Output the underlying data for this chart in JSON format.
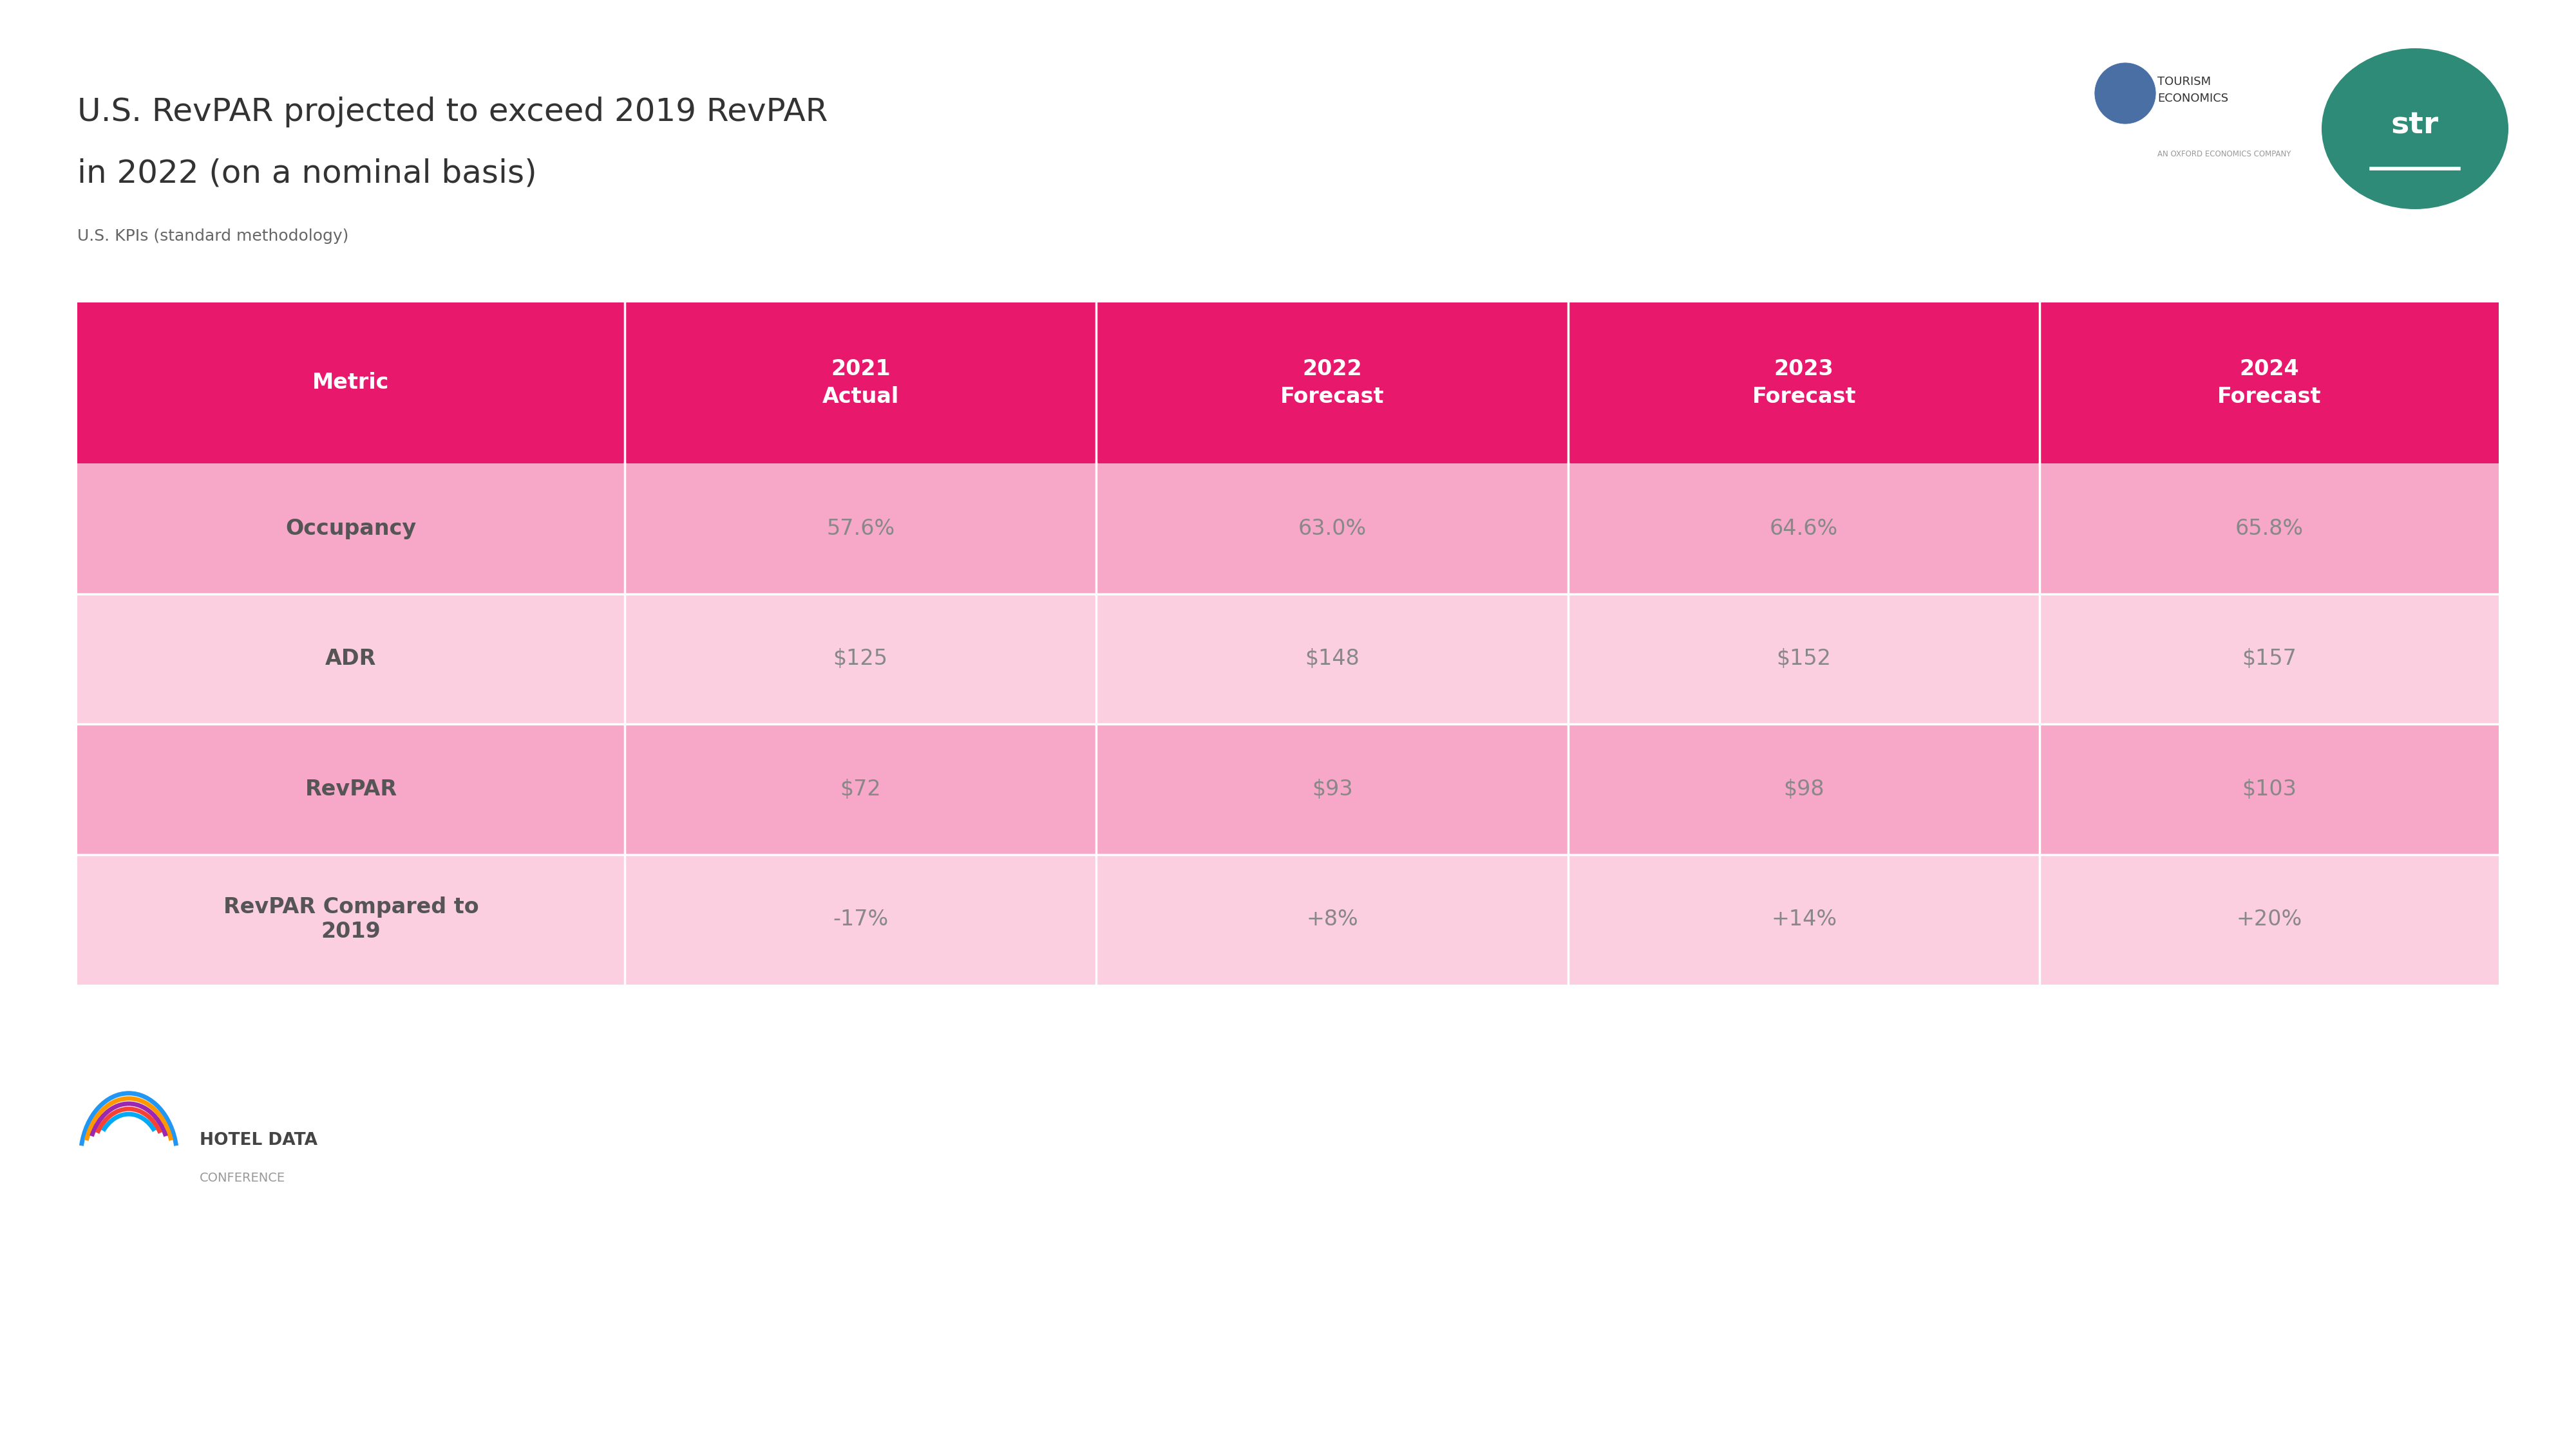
{
  "title_line1": "U.S. RevPAR projected to exceed 2019 RevPAR",
  "title_line2": "in 2022 (on a nominal basis)",
  "subtitle": "U.S. KPIs (standard methodology)",
  "bg_color": "#ffffff",
  "table": {
    "header_bg": "#E8186D",
    "header_text_color": "#ffffff",
    "row_colors": [
      "#F7A8C8",
      "#FBCFDF",
      "#F7A8C8",
      "#FBCFDF"
    ],
    "col_headers": [
      "Metric",
      "2021\nActual",
      "2022\nForecast",
      "2023\nForecast",
      "2024\nForecast"
    ],
    "rows": [
      [
        "Occupancy",
        "57.6%",
        "63.0%",
        "64.6%",
        "65.8%"
      ],
      [
        "ADR",
        "$125",
        "$148",
        "$152",
        "$157"
      ],
      [
        "RevPAR",
        "$72",
        "$93",
        "$98",
        "$103"
      ],
      [
        "RevPAR Compared to\n2019",
        "-17%",
        "+8%",
        "+14%",
        "+20%"
      ]
    ],
    "data_text_color": "#888888",
    "metric_text_color": "#555555"
  },
  "str_color": "#2E8B77",
  "title_color": "#333333",
  "subtitle_color": "#666666",
  "hdc_arc_colors": [
    "#2196F3",
    "#FF9800",
    "#9C27B0",
    "#F44336",
    "#03A9F4"
  ]
}
